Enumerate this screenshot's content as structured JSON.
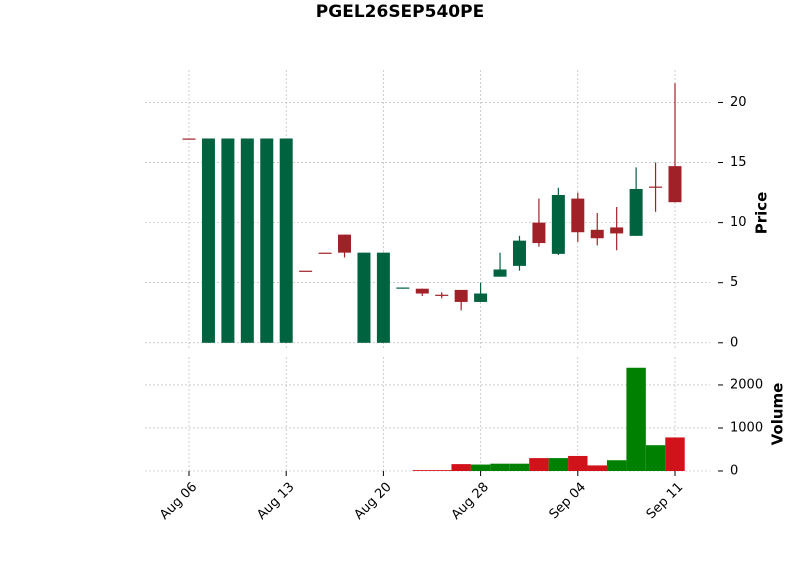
{
  "chart_data": {
    "type": "candlestick",
    "title": "PGEL26SEP540PE",
    "categories": [
      "Aug 06",
      null,
      null,
      null,
      null,
      "Aug 13",
      null,
      null,
      null,
      null,
      "Aug 20",
      null,
      null,
      null,
      null,
      "Aug 28",
      null,
      null,
      null,
      null,
      "Sep 04",
      null,
      null,
      null,
      null,
      "Sep 11"
    ],
    "open": [
      17,
      0,
      0,
      0,
      0,
      0,
      6.0,
      7.5,
      9.0,
      0,
      0,
      4.5,
      4.5,
      4.0,
      4.4,
      3.4,
      5.5,
      6.4,
      10.0,
      7.4,
      12.0,
      9.4,
      9.6,
      8.9,
      13.0,
      14.7
    ],
    "high": [
      17,
      17,
      17,
      17,
      17,
      17,
      6.0,
      7.5,
      9.0,
      7.5,
      7.5,
      4.6,
      4.5,
      4.2,
      4.4,
      5.0,
      7.5,
      8.9,
      12.0,
      12.9,
      12.5,
      10.8,
      11.3,
      14.6,
      15.0,
      21.6
    ],
    "low": [
      17,
      0,
      0,
      0,
      0,
      0,
      6.0,
      7.5,
      7.1,
      0,
      0,
      4.5,
      3.9,
      3.7,
      2.7,
      3.4,
      5.5,
      6.0,
      8.0,
      7.3,
      8.4,
      8.1,
      7.7,
      8.9,
      10.9,
      11.7
    ],
    "close": [
      17,
      17,
      17,
      17,
      17,
      17,
      6.0,
      7.5,
      7.5,
      7.5,
      7.5,
      4.6,
      4.1,
      3.9,
      3.4,
      4.1,
      6.1,
      8.5,
      8.3,
      12.3,
      9.2,
      8.7,
      9.1,
      12.8,
      12.9,
      11.7
    ],
    "volume": [
      0,
      0,
      0,
      0,
      0,
      0,
      0,
      0,
      0,
      0,
      0,
      0,
      20,
      20,
      160,
      150,
      170,
      170,
      300,
      300,
      350,
      130,
      250,
      2400,
      600,
      780
    ],
    "up_color": "#006340",
    "down_color": "#a02128",
    "volume_up_color": "#008000",
    "volume_down_color": "#d0121b",
    "ylabel": "Price",
    "ylim": [
      -0.6,
      22.7
    ],
    "yticks": [
      0,
      5,
      10,
      15,
      20
    ],
    "volume_ylabel": "Volume",
    "volume_ylim": [
      0,
      2650
    ],
    "volume_yticks": [
      0,
      1000,
      2000
    ],
    "grid": true
  }
}
